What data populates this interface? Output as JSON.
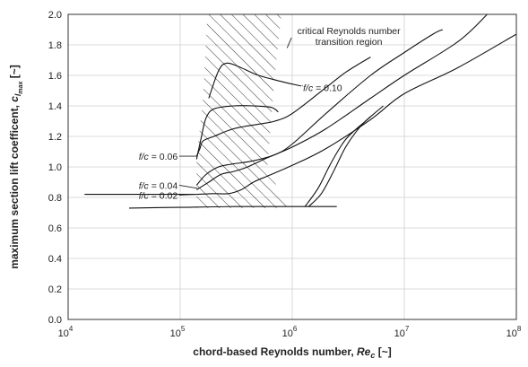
{
  "chart_data": {
    "type": "line",
    "x_scale": "log",
    "y_scale": "linear",
    "xlim": [
      10000,
      100000000
    ],
    "ylim": [
      0.0,
      2.0
    ],
    "x_ticks": [
      10000,
      100000,
      1000000,
      10000000,
      100000000
    ],
    "x_tick_labels": [
      {
        "base": "10",
        "exp": "4"
      },
      {
        "base": "10",
        "exp": "5"
      },
      {
        "base": "10",
        "exp": "6"
      },
      {
        "base": "10",
        "exp": "7"
      },
      {
        "base": "10",
        "exp": "8"
      }
    ],
    "y_ticks": [
      0.0,
      0.2,
      0.4,
      0.6,
      0.8,
      1.0,
      1.2,
      1.4,
      1.6,
      1.8,
      2.0
    ],
    "y_tick_labels": [
      "0.0",
      "0.2",
      "0.4",
      "0.6",
      "0.8",
      "1.0",
      "1.2",
      "1.4",
      "1.6",
      "1.8",
      "2.0"
    ],
    "grid": true,
    "xlabel": {
      "main": "chord-based Reynolds number, ",
      "sym": "Re",
      "sub": "c",
      "unit": " [~]"
    },
    "ylabel": {
      "main": "maximum section lift coefficent, ",
      "sym": "c",
      "sub": "l",
      "subsub": "max",
      "unit": " [~]"
    },
    "annotations": [
      {
        "id": "crit",
        "lines": [
          "critical Reynolds number",
          "transition region"
        ],
        "x": 3200000,
        "y": 1.87
      },
      {
        "id": "fc010",
        "text": "f/c = 0.10",
        "x": 1200000,
        "y": 1.53
      },
      {
        "id": "fc006",
        "text": "f/c = 0.06",
        "x": 85000,
        "y": 1.07
      },
      {
        "id": "fc004",
        "text": "f/c = 0.04",
        "x": 85000,
        "y": 0.88
      },
      {
        "id": "fc002",
        "text": "f/c = 0.02",
        "x": 85000,
        "y": 0.82
      }
    ],
    "transition_region": [
      [
        [
          175000,
          2.0
        ],
        [
          800000,
          2.0
        ],
        [
          700000,
          1.6
        ],
        [
          600000,
          1.0
        ],
        [
          900000,
          0.73
        ],
        [
          140000,
          0.73
        ],
        [
          140000,
          1.05
        ],
        [
          160000,
          1.45
        ]
      ]
    ],
    "series": [
      {
        "values": [
          [
            14000,
            0.82
          ],
          [
            50000,
            0.82
          ],
          [
            100000,
            0.82
          ],
          [
            130000,
            0.82
          ],
          [
            140000,
            0.82
          ]
        ]
      },
      {
        "values": [
          [
            35000,
            0.73
          ],
          [
            100000,
            0.735
          ],
          [
            300000,
            0.74
          ],
          [
            1000000,
            0.74
          ],
          [
            2500000,
            0.74
          ]
        ]
      },
      {
        "values": [
          [
            1400000,
            0.74
          ],
          [
            1800000,
            0.82
          ],
          [
            2300000,
            0.96
          ],
          [
            3000000,
            1.13
          ],
          [
            4000000,
            1.26
          ],
          [
            5000000,
            1.33
          ]
        ]
      },
      {
        "values": [
          [
            1300000,
            0.74
          ],
          [
            1700000,
            0.86
          ],
          [
            2200000,
            1.02
          ],
          [
            3000000,
            1.18
          ],
          [
            4500000,
            1.3
          ],
          [
            6500000,
            1.4
          ]
        ]
      },
      {
        "values": [
          [
            140000,
            0.82
          ],
          [
            200000,
            0.825
          ],
          [
            270000,
            0.825
          ],
          [
            350000,
            0.85
          ],
          [
            450000,
            0.9
          ],
          [
            600000,
            0.94
          ],
          [
            1000000,
            1.01
          ],
          [
            2000000,
            1.12
          ],
          [
            5000000,
            1.31
          ],
          [
            10000000,
            1.48
          ],
          [
            30000000,
            1.65
          ],
          [
            100000000,
            1.87
          ]
        ]
      },
      {
        "values": [
          [
            140000,
            0.85
          ],
          [
            180000,
            0.9
          ],
          [
            230000,
            0.95
          ],
          [
            300000,
            0.97
          ],
          [
            400000,
            1.0
          ],
          [
            600000,
            1.06
          ],
          [
            1000000,
            1.13
          ],
          [
            2000000,
            1.25
          ],
          [
            5000000,
            1.45
          ],
          [
            10000000,
            1.6
          ],
          [
            30000000,
            1.82
          ],
          [
            55000000,
            2.0
          ]
        ]
      },
      {
        "values": [
          [
            140000,
            0.88
          ],
          [
            170000,
            0.95
          ],
          [
            220000,
            1.0
          ],
          [
            300000,
            1.02
          ],
          [
            450000,
            1.04
          ],
          [
            700000,
            1.08
          ],
          [
            1000000,
            1.15
          ],
          [
            2000000,
            1.35
          ],
          [
            5000000,
            1.6
          ],
          [
            10000000,
            1.75
          ],
          [
            18000000,
            1.87
          ],
          [
            22000000,
            1.9
          ]
        ]
      },
      {
        "values": [
          [
            140000,
            1.05
          ],
          [
            155000,
            1.2
          ],
          [
            170000,
            1.32
          ],
          [
            200000,
            1.38
          ],
          [
            300000,
            1.4
          ],
          [
            450000,
            1.4
          ],
          [
            650000,
            1.39
          ],
          [
            750000,
            1.36
          ]
        ]
      },
      {
        "values": [
          [
            140000,
            1.07
          ],
          [
            150000,
            1.12
          ],
          [
            160000,
            1.17
          ],
          [
            200000,
            1.2
          ],
          [
            300000,
            1.25
          ],
          [
            500000,
            1.28
          ],
          [
            700000,
            1.3
          ],
          [
            1000000,
            1.35
          ],
          [
            2000000,
            1.52
          ],
          [
            3000000,
            1.62
          ],
          [
            5000000,
            1.72
          ]
        ]
      },
      {
        "values": [
          [
            180000,
            1.45
          ],
          [
            220000,
            1.63
          ],
          [
            260000,
            1.68
          ],
          [
            350000,
            1.65
          ],
          [
            500000,
            1.6
          ],
          [
            800000,
            1.56
          ],
          [
            1200000,
            1.53
          ]
        ]
      }
    ]
  }
}
